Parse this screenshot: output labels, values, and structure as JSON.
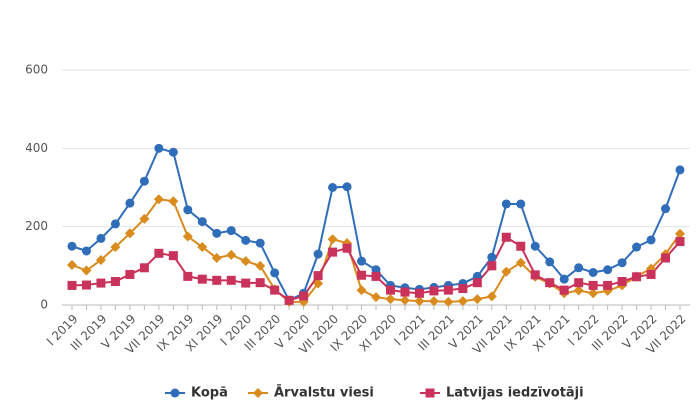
{
  "chart_data": {
    "type": "line",
    "categories": [
      "I 2019",
      null,
      "III 2019",
      null,
      "V 2019",
      null,
      "VII 2019",
      null,
      "IX 2019",
      null,
      "XI 2019",
      null,
      "I 2020",
      null,
      "III 2020",
      null,
      "V 2020",
      null,
      "VII 2020",
      null,
      "IX 2020",
      null,
      "XI 2020",
      null,
      "I 2021",
      null,
      "III 2021",
      null,
      "V 2021",
      null,
      "VII 2021",
      null,
      "IX 2021",
      null,
      "XI 2021",
      null,
      "I 2022",
      null,
      "III 2022",
      null,
      "V 2022",
      null,
      "VII 2022"
    ],
    "series": [
      {
        "name": "Kopā",
        "color": "#2f6db8",
        "marker": "circle",
        "values": [
          150,
          138,
          170,
          207,
          260,
          316,
          400,
          390,
          243,
          213,
          183,
          190,
          165,
          158,
          82,
          12,
          30,
          130,
          300,
          302,
          112,
          90,
          50,
          44,
          40,
          45,
          50,
          55,
          73,
          122,
          258,
          258,
          150,
          110,
          66,
          95,
          83,
          90,
          108,
          148,
          166,
          246,
          345
        ]
      },
      {
        "name": "Ārvalstu viesi",
        "color": "#d98b1e",
        "marker": "diamond",
        "values": [
          102,
          88,
          115,
          148,
          183,
          220,
          270,
          265,
          175,
          148,
          120,
          128,
          112,
          100,
          40,
          8,
          8,
          55,
          168,
          158,
          38,
          20,
          15,
          12,
          10,
          10,
          8,
          10,
          15,
          22,
          85,
          108,
          72,
          55,
          30,
          37,
          30,
          36,
          50,
          73,
          93,
          130,
          182
        ]
      },
      {
        "name": "Latvijas iedzīvotāji",
        "color": "#c9325b",
        "marker": "square",
        "values": [
          50,
          51,
          56,
          60,
          78,
          95,
          132,
          126,
          73,
          66,
          63,
          63,
          56,
          57,
          38,
          12,
          23,
          75,
          135,
          145,
          76,
          73,
          38,
          33,
          30,
          36,
          38,
          42,
          57,
          100,
          173,
          150,
          77,
          57,
          38,
          57,
          50,
          50,
          60,
          72,
          78,
          120,
          162
        ]
      }
    ],
    "ylim": [
      0,
      600
    ],
    "yticks": [
      0,
      200,
      400,
      600
    ],
    "grid": true,
    "legend": "bottom"
  }
}
